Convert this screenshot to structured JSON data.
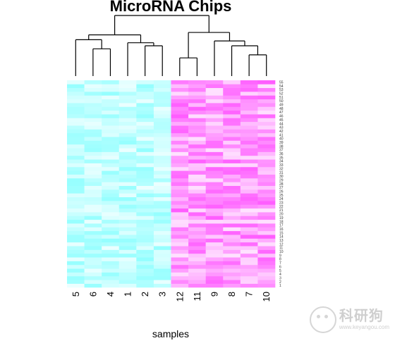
{
  "chart_data": {
    "type": "heatmap",
    "title": "MicroRNA Chips",
    "xlabel": "samples",
    "column_order": [
      "5",
      "6",
      "4",
      "1",
      "2",
      "3",
      "12",
      "11",
      "9",
      "8",
      "7",
      "10"
    ],
    "column_groups": [
      {
        "columns": [
          "5",
          "6",
          "4",
          "1",
          "2",
          "3"
        ],
        "color": "#80ffff"
      },
      {
        "columns": [
          "12",
          "11",
          "9",
          "8",
          "7",
          "10"
        ],
        "color": "#ff40ff"
      }
    ],
    "row_labels": [
      "1",
      "2",
      "3",
      "4",
      "5",
      "6",
      "7",
      "8",
      "9",
      "10",
      "11",
      "12",
      "13",
      "14",
      "15",
      "16",
      "17",
      "18",
      "19",
      "20",
      "21",
      "22",
      "23",
      "24",
      "25",
      "26",
      "27",
      "28",
      "29",
      "30",
      "31",
      "32",
      "33",
      "34",
      "35",
      "36",
      "37",
      "38",
      "39",
      "40",
      "41",
      "42",
      "43",
      "44",
      "45",
      "46",
      "47",
      "48",
      "49",
      "50",
      "51",
      "52",
      "53",
      "54",
      "55"
    ],
    "dendrogram": {
      "merges": [
        {
          "left": "6",
          "right": "4",
          "height": 0.45
        },
        {
          "left": "5",
          "right": "6+4",
          "height": 0.6
        },
        {
          "left": "2",
          "right": "3",
          "height": 0.5
        },
        {
          "left": "1",
          "right": "2+3",
          "height": 0.55
        },
        {
          "left": "5+6+4",
          "right": "1+2+3",
          "height": 0.68
        },
        {
          "left": "12",
          "right": "11",
          "height": 0.3
        },
        {
          "left": "7",
          "right": "10",
          "height": 0.35
        },
        {
          "left": "8",
          "right": "7+10",
          "height": 0.5
        },
        {
          "left": "9",
          "right": "8+7+10",
          "height": 0.58
        },
        {
          "left": "12+11",
          "right": "9+8+7+10",
          "height": 0.72
        },
        {
          "left": "group1",
          "right": "group2",
          "height": 1.0
        }
      ]
    }
  },
  "watermark": {
    "main": "科研狗",
    "sub": "www.keyangou.com"
  }
}
